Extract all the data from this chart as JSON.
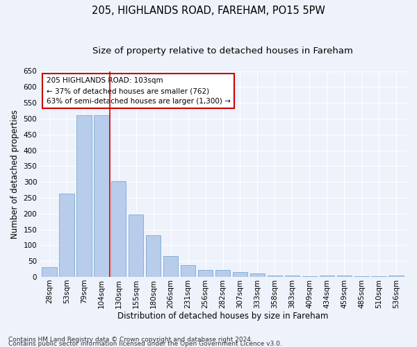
{
  "title1": "205, HIGHLANDS ROAD, FAREHAM, PO15 5PW",
  "title2": "Size of property relative to detached houses in Fareham",
  "xlabel": "Distribution of detached houses by size in Fareham",
  "ylabel": "Number of detached properties",
  "categories": [
    "28sqm",
    "53sqm",
    "79sqm",
    "104sqm",
    "130sqm",
    "155sqm",
    "180sqm",
    "206sqm",
    "231sqm",
    "256sqm",
    "282sqm",
    "307sqm",
    "333sqm",
    "358sqm",
    "383sqm",
    "409sqm",
    "434sqm",
    "459sqm",
    "485sqm",
    "510sqm",
    "536sqm"
  ],
  "values": [
    30,
    263,
    510,
    510,
    302,
    197,
    132,
    65,
    38,
    22,
    22,
    15,
    10,
    5,
    5,
    3,
    5,
    5,
    3,
    3,
    5
  ],
  "bar_color": "#b8cceb",
  "bar_edge_color": "#7aaad4",
  "annotation_text_line1": "205 HIGHLANDS ROAD: 103sqm",
  "annotation_text_line2": "← 37% of detached houses are smaller (762)",
  "annotation_text_line3": "63% of semi-detached houses are larger (1,300) →",
  "annotation_box_color": "#ffffff",
  "annotation_box_edge": "#cc0000",
  "vline_color": "#cc0000",
  "vline_x": 3.5,
  "ylim": [
    0,
    650
  ],
  "yticks": [
    0,
    50,
    100,
    150,
    200,
    250,
    300,
    350,
    400,
    450,
    500,
    550,
    600,
    650
  ],
  "footer1": "Contains HM Land Registry data © Crown copyright and database right 2024.",
  "footer2": "Contains public sector information licensed under the Open Government Licence v3.0.",
  "background_color": "#eef2fb",
  "grid_color": "#ffffff",
  "title1_fontsize": 10.5,
  "title2_fontsize": 9.5,
  "xlabel_fontsize": 8.5,
  "ylabel_fontsize": 8.5,
  "tick_fontsize": 7.5,
  "annotation_fontsize": 7.5,
  "footer_fontsize": 6.5
}
